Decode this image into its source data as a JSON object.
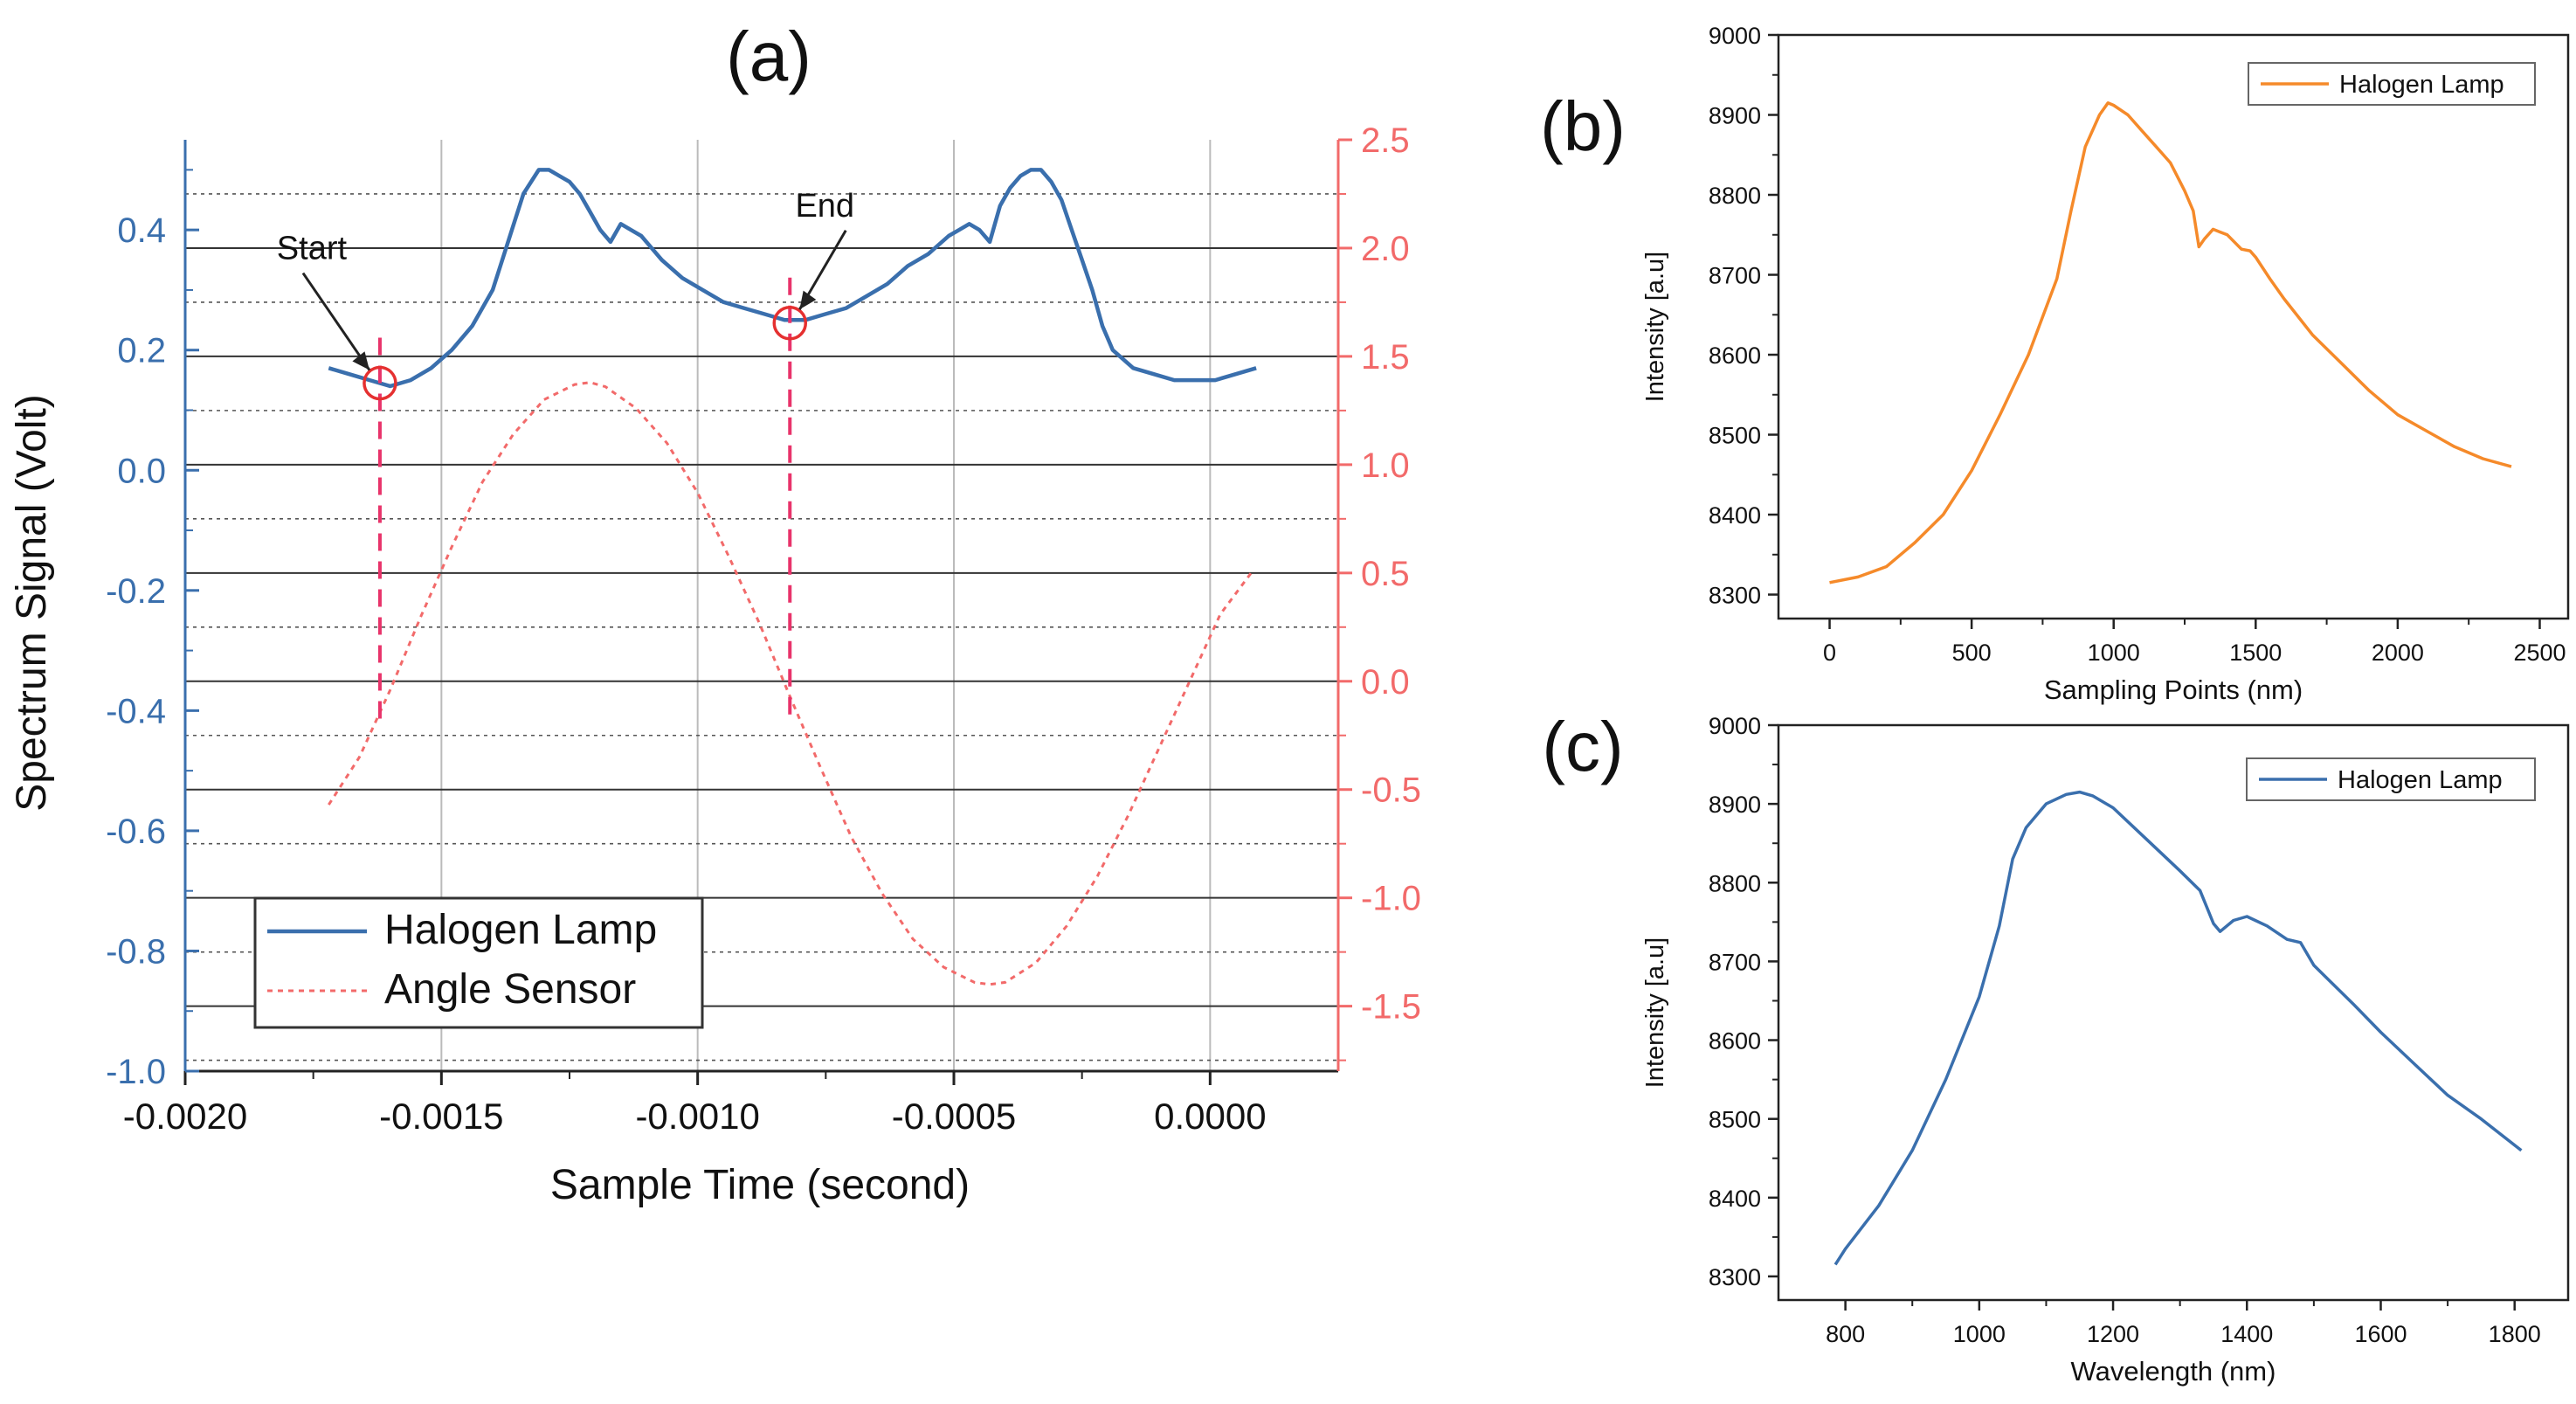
{
  "figure": {
    "colors": {
      "blue": "#3a6fad",
      "red": "#f26a6a",
      "orange": "#f58a2a",
      "pink": "#e8336a",
      "axis": "#222222",
      "grid": "#999999",
      "text": "#111111"
    }
  },
  "chart_data": [
    {
      "id": "a",
      "panel_label": "(a)",
      "type": "line",
      "xlabel": "Sample Time (second)",
      "ylabel": "Spectrum Signal (Volt)",
      "y2label": "",
      "xlim": [
        -0.002,
        0.00025
      ],
      "ylim": [
        -1.0,
        0.55
      ],
      "y2lim": [
        -1.8,
        2.5
      ],
      "xticks": [
        -0.002,
        -0.0015,
        -0.001,
        -0.0005,
        0.0
      ],
      "xtick_labels": [
        "-0.0020",
        "-0.0015",
        "-0.0010",
        "-0.0005",
        "0.0000"
      ],
      "yticks": [
        0.4,
        0.2,
        0.0,
        -0.2,
        -0.4,
        -0.6,
        -0.8,
        -1.0
      ],
      "ytick_labels": [
        "0.4",
        "0.2",
        "0.0",
        "-0.2",
        "-0.4",
        "-0.6",
        "-0.8",
        "-1.0"
      ],
      "y2ticks": [
        2.5,
        2.0,
        1.5,
        1.0,
        0.5,
        0.0,
        -0.5,
        -1.0,
        -1.5
      ],
      "y2tick_labels": [
        "2.5",
        "2.0",
        "1.5",
        "1.0",
        "0.5",
        "0.0",
        "-0.5",
        "-1.0",
        "-1.5"
      ],
      "grid": true,
      "legend_position": "bottom-left",
      "series": [
        {
          "name": "Halogen Lamp",
          "axis": "left",
          "style": "solid",
          "x": [
            -0.00172,
            -0.00168,
            -0.00164,
            -0.0016,
            -0.00156,
            -0.00152,
            -0.00148,
            -0.00144,
            -0.0014,
            -0.00137,
            -0.00134,
            -0.00131,
            -0.00129,
            -0.00127,
            -0.00125,
            -0.00123,
            -0.00121,
            -0.00119,
            -0.00117,
            -0.00115,
            -0.00113,
            -0.00111,
            -0.00109,
            -0.00107,
            -0.00103,
            -0.00099,
            -0.00095,
            -0.00091,
            -0.00087,
            -0.00083,
            -0.00079,
            -0.00075,
            -0.00071,
            -0.00067,
            -0.00063,
            -0.00059,
            -0.00055,
            -0.00051,
            -0.00049,
            -0.00047,
            -0.00045,
            -0.00043,
            -0.00041,
            -0.00039,
            -0.00037,
            -0.00035,
            -0.00033,
            -0.00031,
            -0.00029,
            -0.00027,
            -0.00025,
            -0.00023,
            -0.00021,
            -0.00019,
            -0.00015,
            -0.00011,
            -7e-05,
            -3e-05,
            1e-05,
            5e-05,
            9e-05
          ],
          "values": [
            0.17,
            0.16,
            0.15,
            0.14,
            0.15,
            0.17,
            0.2,
            0.24,
            0.3,
            0.38,
            0.46,
            0.5,
            0.5,
            0.49,
            0.48,
            0.46,
            0.43,
            0.4,
            0.38,
            0.41,
            0.4,
            0.39,
            0.37,
            0.35,
            0.32,
            0.3,
            0.28,
            0.27,
            0.26,
            0.25,
            0.25,
            0.26,
            0.27,
            0.29,
            0.31,
            0.34,
            0.36,
            0.39,
            0.4,
            0.41,
            0.4,
            0.38,
            0.44,
            0.47,
            0.49,
            0.5,
            0.5,
            0.48,
            0.45,
            0.4,
            0.35,
            0.3,
            0.24,
            0.2,
            0.17,
            0.16,
            0.15,
            0.15,
            0.15,
            0.16,
            0.17
          ]
        },
        {
          "name": "Angle Sensor",
          "axis": "right",
          "style": "dotted",
          "x": [
            -0.00172,
            -0.00166,
            -0.0016,
            -0.00154,
            -0.00148,
            -0.00142,
            -0.00136,
            -0.0013,
            -0.00124,
            -0.00121,
            -0.00118,
            -0.00112,
            -0.00106,
            -0.001,
            -0.00094,
            -0.00088,
            -0.00082,
            -0.00076,
            -0.0007,
            -0.00064,
            -0.00058,
            -0.00052,
            -0.00046,
            -0.00043,
            -0.0004,
            -0.00034,
            -0.00028,
            -0.00022,
            -0.00016,
            -0.0001,
            -4e-05,
            2e-05,
            8e-05
          ],
          "values": [
            -0.57,
            -0.35,
            -0.04,
            0.3,
            0.62,
            0.92,
            1.14,
            1.3,
            1.37,
            1.38,
            1.36,
            1.26,
            1.1,
            0.87,
            0.58,
            0.27,
            -0.07,
            -0.4,
            -0.72,
            -0.98,
            -1.19,
            -1.32,
            -1.39,
            -1.4,
            -1.39,
            -1.3,
            -1.13,
            -0.9,
            -0.62,
            -0.31,
            0.0,
            0.31,
            0.5
          ]
        }
      ],
      "annotations": [
        {
          "text": "Start",
          "x": -0.00162,
          "y": 0.145
        },
        {
          "text": "End",
          "x": -0.00082,
          "y": 0.245
        }
      ]
    },
    {
      "id": "b",
      "panel_label": "(b)",
      "type": "line",
      "xlabel": "Sampling Points (nm)",
      "ylabel": "Intensity [a.u]",
      "xlim": [
        -180,
        2600
      ],
      "ylim": [
        8270,
        9000
      ],
      "xticks": [
        0,
        500,
        1000,
        1500,
        2000,
        2500
      ],
      "xtick_labels": [
        "0",
        "500",
        "1000",
        "1500",
        "2000",
        "2500"
      ],
      "yticks": [
        8300,
        8400,
        8500,
        8600,
        8700,
        8800,
        8900,
        9000
      ],
      "ytick_labels": [
        "8300",
        "8400",
        "8500",
        "8600",
        "8700",
        "8800",
        "8900",
        "9000"
      ],
      "grid": false,
      "legend_position": "top-right",
      "series": [
        {
          "name": "Halogen Lamp",
          "x": [
            0,
            100,
            200,
            300,
            400,
            500,
            600,
            700,
            800,
            850,
            900,
            950,
            980,
            1000,
            1050,
            1100,
            1150,
            1200,
            1250,
            1280,
            1300,
            1320,
            1350,
            1400,
            1450,
            1480,
            1500,
            1550,
            1600,
            1700,
            1800,
            1900,
            2000,
            2100,
            2200,
            2300,
            2400
          ],
          "values": [
            8315,
            8322,
            8335,
            8365,
            8400,
            8455,
            8525,
            8600,
            8695,
            8780,
            8860,
            8900,
            8915,
            8912,
            8900,
            8880,
            8860,
            8840,
            8805,
            8780,
            8735,
            8745,
            8757,
            8750,
            8732,
            8730,
            8722,
            8695,
            8670,
            8625,
            8590,
            8555,
            8525,
            8505,
            8485,
            8470,
            8460
          ]
        }
      ]
    },
    {
      "id": "c",
      "panel_label": "(c)",
      "type": "line",
      "xlabel": "Wavelength (nm)",
      "ylabel": "Intensity [a.u]",
      "xlim": [
        700,
        1880
      ],
      "ylim": [
        8270,
        9000
      ],
      "xticks": [
        800,
        1000,
        1200,
        1400,
        1600,
        1800
      ],
      "xtick_labels": [
        "800",
        "1000",
        "1200",
        "1400",
        "1600",
        "1800"
      ],
      "yticks": [
        8300,
        8400,
        8500,
        8600,
        8700,
        8800,
        8900,
        9000
      ],
      "ytick_labels": [
        "8300",
        "8400",
        "8500",
        "8600",
        "8700",
        "8800",
        "8900",
        "9000"
      ],
      "grid": false,
      "legend_position": "top-right",
      "series": [
        {
          "name": "Halogen Lamp",
          "x": [
            785,
            800,
            850,
            900,
            950,
            1000,
            1030,
            1050,
            1070,
            1100,
            1130,
            1150,
            1170,
            1200,
            1250,
            1300,
            1330,
            1350,
            1360,
            1380,
            1400,
            1430,
            1460,
            1480,
            1500,
            1530,
            1560,
            1600,
            1650,
            1700,
            1750,
            1810
          ],
          "values": [
            8315,
            8335,
            8390,
            8460,
            8550,
            8655,
            8745,
            8830,
            8870,
            8900,
            8912,
            8915,
            8910,
            8895,
            8855,
            8815,
            8790,
            8748,
            8738,
            8752,
            8757,
            8745,
            8728,
            8724,
            8695,
            8670,
            8645,
            8610,
            8570,
            8530,
            8500,
            8460
          ]
        }
      ]
    }
  ]
}
